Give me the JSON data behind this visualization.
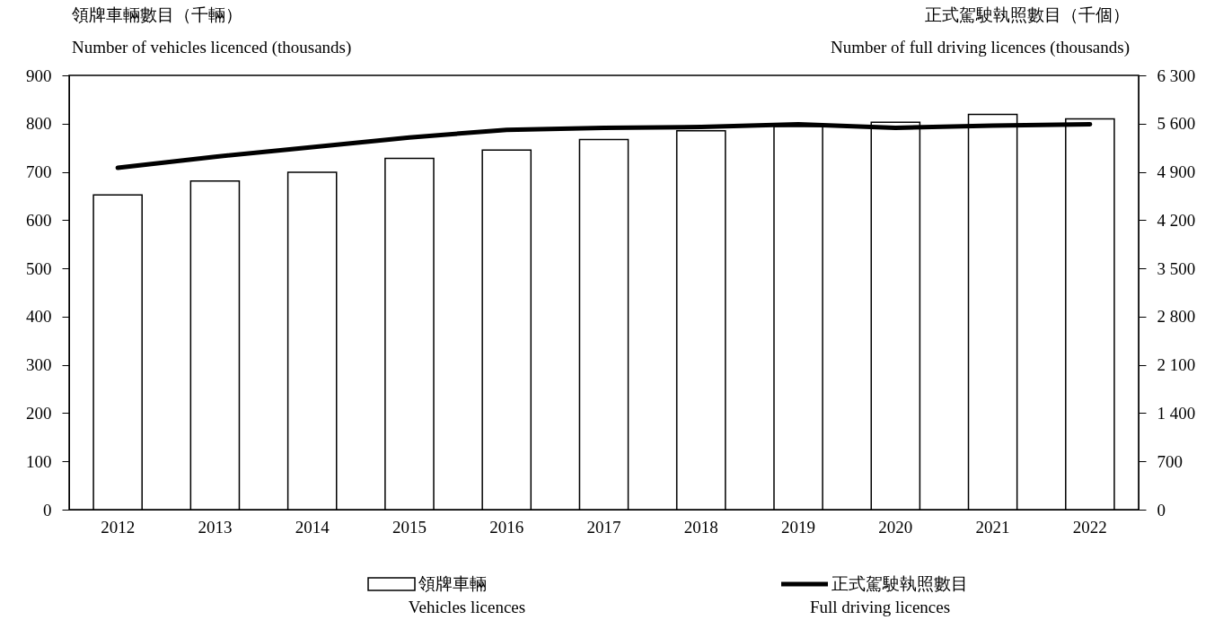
{
  "chart_data": {
    "type": "bar",
    "ylabel": "領牌車輛數目（千輛）\nNumber of vehicles licenced (thousands)",
    "y2label": "正式駕駛執照數目（千個）\nNumber of full driving licences (thousands)",
    "categories": [
      "2012",
      "2013",
      "2014",
      "2015",
      "2016",
      "2017",
      "2018",
      "2019",
      "2020",
      "2021",
      "2022"
    ],
    "series": [
      {
        "name": "領牌車輛\nVehicles licences",
        "color": "#ffffff",
        "values": [
          652,
          681,
          699,
          728,
          745,
          767,
          785,
          794,
          803,
          819,
          810
        ]
      },
      {
        "name": "正式駕駛執照數目\nFull driving licences",
        "type": "line",
        "axis": "y2",
        "color": "#000000",
        "values": [
          4960,
          5120,
          5260,
          5400,
          5510,
          5540,
          5550,
          5590,
          5540,
          5570,
          5590
        ]
      }
    ],
    "ylim": [
      0,
      900
    ],
    "yticks": [
      0,
      100,
      200,
      300,
      400,
      500,
      600,
      700,
      800,
      900
    ],
    "y2lim": [
      0,
      6300
    ],
    "y2ticks": [
      {
        "value": 0,
        "label": "0"
      },
      {
        "value": 700,
        "label": "700"
      },
      {
        "value": 1400,
        "label": "1 400"
      },
      {
        "value": 2100,
        "label": "2 100"
      },
      {
        "value": 2800,
        "label": "2 800"
      },
      {
        "value": 3500,
        "label": "3 500"
      },
      {
        "value": 4200,
        "label": "4 200"
      },
      {
        "value": 4900,
        "label": "4 900"
      },
      {
        "value": 5600,
        "label": "5 600"
      },
      {
        "value": 6300,
        "label": "6 300"
      }
    ],
    "grid": false,
    "legend": "bottom",
    "marker": "none",
    "line_style": "solid"
  }
}
